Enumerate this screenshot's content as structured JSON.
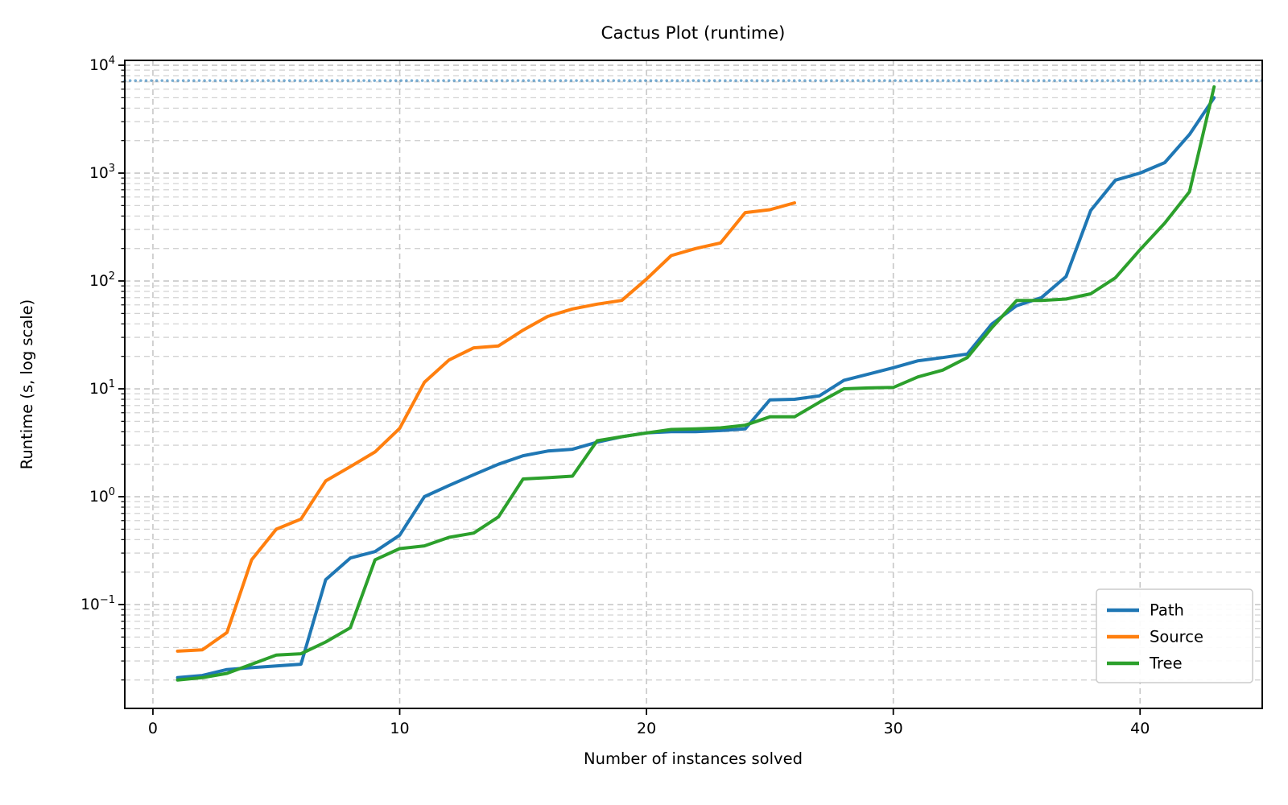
{
  "chart_data": {
    "type": "line",
    "title": "Cactus Plot (runtime)",
    "xlabel": "Number of instances solved",
    "ylabel": "Runtime (s, log scale)",
    "y_scale": "log10",
    "xlim": [
      -1.14,
      44.95
    ],
    "ylim": [
      0.0109,
      11090
    ],
    "x_ticks": [
      0,
      10,
      20,
      30,
      40
    ],
    "y_tick_exponents": [
      4,
      3,
      2,
      1,
      0,
      -1
    ],
    "grid": {
      "style": "dashed",
      "vertical": "major-only",
      "horizontal": "major-and-minor-log"
    },
    "legend": {
      "position": "lower-right",
      "entries": [
        "Path",
        "Source",
        "Tree"
      ]
    },
    "timeout_hline": {
      "y": 7200,
      "style": "dotted",
      "color": "#1f77b4",
      "opacity": 0.6
    },
    "series": [
      {
        "name": "Path",
        "color": "#1f77b4",
        "x_start": 1,
        "values": [
          0.021,
          0.022,
          0.025,
          0.026,
          0.027,
          0.028,
          0.17,
          0.27,
          0.31,
          0.44,
          1.0,
          1.27,
          1.6,
          2.0,
          2.4,
          2.65,
          2.75,
          3.2,
          3.6,
          3.9,
          4.0,
          4.0,
          4.1,
          4.25,
          7.9,
          8.0,
          8.6,
          12,
          13.7,
          15.7,
          18.2,
          19.5,
          21,
          40,
          59,
          70,
          110,
          450,
          860,
          1000,
          1250,
          2280,
          5000
        ]
      },
      {
        "name": "Source",
        "color": "#ff7f0e",
        "x_start": 1,
        "values": [
          0.037,
          0.038,
          0.055,
          0.26,
          0.5,
          0.62,
          1.4,
          1.9,
          2.6,
          4.3,
          11.5,
          18.5,
          24,
          25,
          35,
          47,
          55,
          61,
          66,
          104,
          172,
          200,
          225,
          430,
          458,
          530
        ]
      },
      {
        "name": "Tree",
        "color": "#2ca02c",
        "x_start": 1,
        "values": [
          0.02,
          0.021,
          0.023,
          0.028,
          0.034,
          0.035,
          0.045,
          0.061,
          0.26,
          0.33,
          0.35,
          0.42,
          0.46,
          0.65,
          1.46,
          1.5,
          1.55,
          3.3,
          3.6,
          3.9,
          4.2,
          4.25,
          4.35,
          4.6,
          5.5,
          5.5,
          7.5,
          10.0,
          10.2,
          10.3,
          12.9,
          14.9,
          19.5,
          37,
          66,
          66,
          68,
          76,
          107,
          195,
          344,
          670,
          6300
        ]
      }
    ]
  },
  "colors": {
    "path": "#1f77b4",
    "source": "#ff7f0e",
    "tree": "#2ca02c",
    "grid_major": "#c7c7c7",
    "grid_minor": "#d2d2d2",
    "spine": "#000000",
    "legend_border": "#cccccc"
  }
}
